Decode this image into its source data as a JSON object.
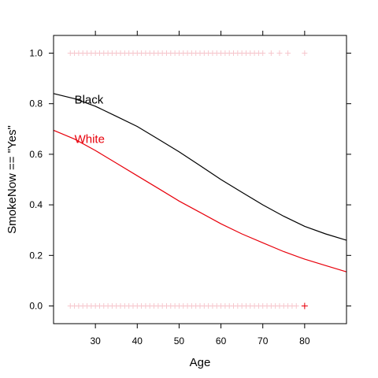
{
  "chart_data": {
    "type": "line",
    "title": "",
    "xlabel": "Age",
    "ylabel": "SmokeNow == \"Yes\"",
    "xlim": [
      20,
      90
    ],
    "ylim": [
      -0.07,
      1.07
    ],
    "x_ticks": [
      30,
      40,
      50,
      60,
      70,
      80
    ],
    "y_ticks": [
      0.0,
      0.2,
      0.4,
      0.6,
      0.8,
      1.0
    ],
    "y_tick_labels": [
      "0.0",
      "0.2",
      "0.4",
      "0.6",
      "0.8",
      "1.0"
    ],
    "colors": {
      "black": "#000000",
      "red": "#e8000b",
      "rug": "#f4b8c0",
      "frame": "#000000"
    },
    "series": [
      {
        "name": "Black",
        "color": "#000000",
        "label_at": {
          "x": 25,
          "y": 0.8
        },
        "x": [
          20,
          25,
          30,
          35,
          40,
          45,
          50,
          55,
          60,
          65,
          70,
          75,
          80,
          85,
          90
        ],
        "values": [
          0.84,
          0.82,
          0.79,
          0.75,
          0.71,
          0.66,
          0.61,
          0.555,
          0.5,
          0.45,
          0.4,
          0.355,
          0.315,
          0.285,
          0.26
        ]
      },
      {
        "name": "White",
        "color": "#e8000b",
        "label_at": {
          "x": 25,
          "y": 0.645
        },
        "x": [
          20,
          25,
          30,
          35,
          40,
          45,
          50,
          55,
          60,
          65,
          70,
          75,
          80,
          85,
          90
        ],
        "values": [
          0.695,
          0.66,
          0.615,
          0.565,
          0.515,
          0.465,
          0.415,
          0.37,
          0.325,
          0.285,
          0.25,
          0.215,
          0.185,
          0.16,
          0.135
        ]
      }
    ],
    "observations": [
      {
        "y": 1,
        "x": [
          24,
          25,
          26,
          27,
          28,
          29,
          30,
          31,
          32,
          33,
          34,
          35,
          36,
          37,
          38,
          39,
          40,
          41,
          42,
          43,
          44,
          45,
          46,
          47,
          48,
          49,
          50,
          51,
          52,
          53,
          54,
          55,
          56,
          57,
          58,
          59,
          60,
          61,
          62,
          63,
          64,
          65,
          66,
          67,
          68,
          69,
          70,
          72,
          74,
          76,
          80
        ]
      },
      {
        "y": 0,
        "x": [
          24,
          25,
          26,
          27,
          28,
          29,
          30,
          31,
          32,
          33,
          34,
          35,
          36,
          37,
          38,
          39,
          40,
          41,
          42,
          43,
          44,
          45,
          46,
          47,
          48,
          49,
          50,
          51,
          52,
          53,
          54,
          55,
          56,
          57,
          58,
          59,
          60,
          61,
          62,
          63,
          64,
          65,
          66,
          67,
          68,
          69,
          70,
          71,
          72,
          73,
          74,
          75,
          76,
          77,
          78,
          80
        ]
      }
    ]
  }
}
